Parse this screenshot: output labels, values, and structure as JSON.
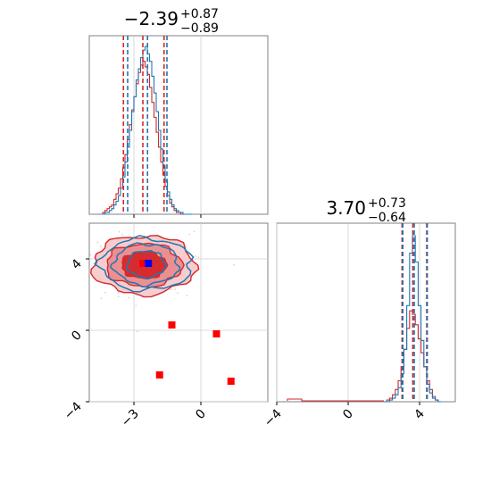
{
  "chart_data": {
    "type": "corner",
    "series": [
      {
        "color": "#1f77b4"
      },
      {
        "color": "#d62728"
      }
    ],
    "params": [
      {
        "title_value": "−2.39",
        "title_plus": "+0.87",
        "title_minus": "−0.89",
        "median": -2.39,
        "range": [
          -5,
          3
        ]
      },
      {
        "title_value": "3.70",
        "title_plus": "+0.73",
        "title_minus": "−0.64",
        "median": 3.7,
        "range": [
          -4,
          6
        ]
      }
    ],
    "x_axis": {
      "tick_values": [
        -3,
        0
      ],
      "tick_labels": [
        "−3",
        "0"
      ]
    },
    "y_axis": {
      "tick_values": [
        -4,
        0,
        4
      ],
      "tick_labels": [
        "−4",
        "0",
        "4"
      ]
    },
    "x2_axis": {
      "tick_values": [
        -4,
        0,
        4
      ],
      "tick_labels": [
        "−4",
        "0",
        "4"
      ]
    },
    "hist1": {
      "bins": [
        -4.4,
        -0.4
      ],
      "blue": [
        0,
        1,
        1,
        2,
        3,
        5,
        7,
        10,
        14,
        20,
        28,
        36,
        45,
        55,
        63,
        72,
        78,
        84,
        88,
        90,
        86,
        82,
        74,
        65,
        55,
        45,
        35,
        26,
        18,
        12,
        8,
        5,
        3,
        2,
        1,
        1,
        0,
        0,
        0,
        0
      ],
      "red": [
        1,
        2,
        3,
        4,
        5,
        8,
        11,
        14,
        19,
        25,
        32,
        40,
        48,
        56,
        63,
        70,
        76,
        80,
        82,
        79,
        75,
        68,
        60,
        52,
        44,
        36,
        28,
        21,
        15,
        10,
        6,
        4,
        2,
        1,
        1,
        0,
        0,
        0,
        0,
        0
      ],
      "quantiles_blue": [
        -3.28,
        -2.39,
        -1.52
      ],
      "quantiles_red": [
        -3.47,
        -2.6,
        -1.65
      ]
    },
    "hist2": {
      "bins": [
        2.0,
        5.2
      ],
      "blue": [
        0,
        0,
        1,
        2,
        4,
        8,
        16,
        30,
        55,
        85,
        95,
        80,
        55,
        35,
        20,
        10,
        5,
        2,
        1,
        0
      ],
      "red": [
        0,
        1,
        2,
        4,
        7,
        12,
        20,
        30,
        42,
        52,
        50,
        44,
        36,
        28,
        20,
        12,
        7,
        3,
        1,
        0
      ],
      "quantiles_blue": [
        3.06,
        3.7,
        4.43
      ],
      "quantiles_red": [
        3.02,
        3.62,
        4.4
      ]
    },
    "joint": {
      "blue_contours": [
        {
          "cx": -2.45,
          "cy": 3.7,
          "rx": 0.85,
          "ry": 0.75
        },
        {
          "cx": -2.45,
          "cy": 3.7,
          "rx": 1.45,
          "ry": 1.15
        },
        {
          "cx": -2.45,
          "cy": 3.7,
          "rx": 2.05,
          "ry": 1.45
        }
      ],
      "red_contours": [
        {
          "cx": -2.55,
          "cy": 3.65,
          "rx": 1.0,
          "ry": 0.75
        },
        {
          "cx": -2.55,
          "cy": 3.65,
          "rx": 1.7,
          "ry": 1.2
        },
        {
          "cx": -2.55,
          "cy": 3.65,
          "rx": 2.3,
          "ry": 1.65
        }
      ],
      "red_points": [
        {
          "x": -1.3,
          "y": 0.3
        },
        {
          "x": 0.7,
          "y": -0.2
        },
        {
          "x": -1.85,
          "y": -2.5
        },
        {
          "x": 1.35,
          "y": -2.85
        },
        {
          "x": -2.6,
          "y": 3.75
        }
      ],
      "blue_point": {
        "x": -2.35,
        "y": 3.75
      }
    }
  }
}
